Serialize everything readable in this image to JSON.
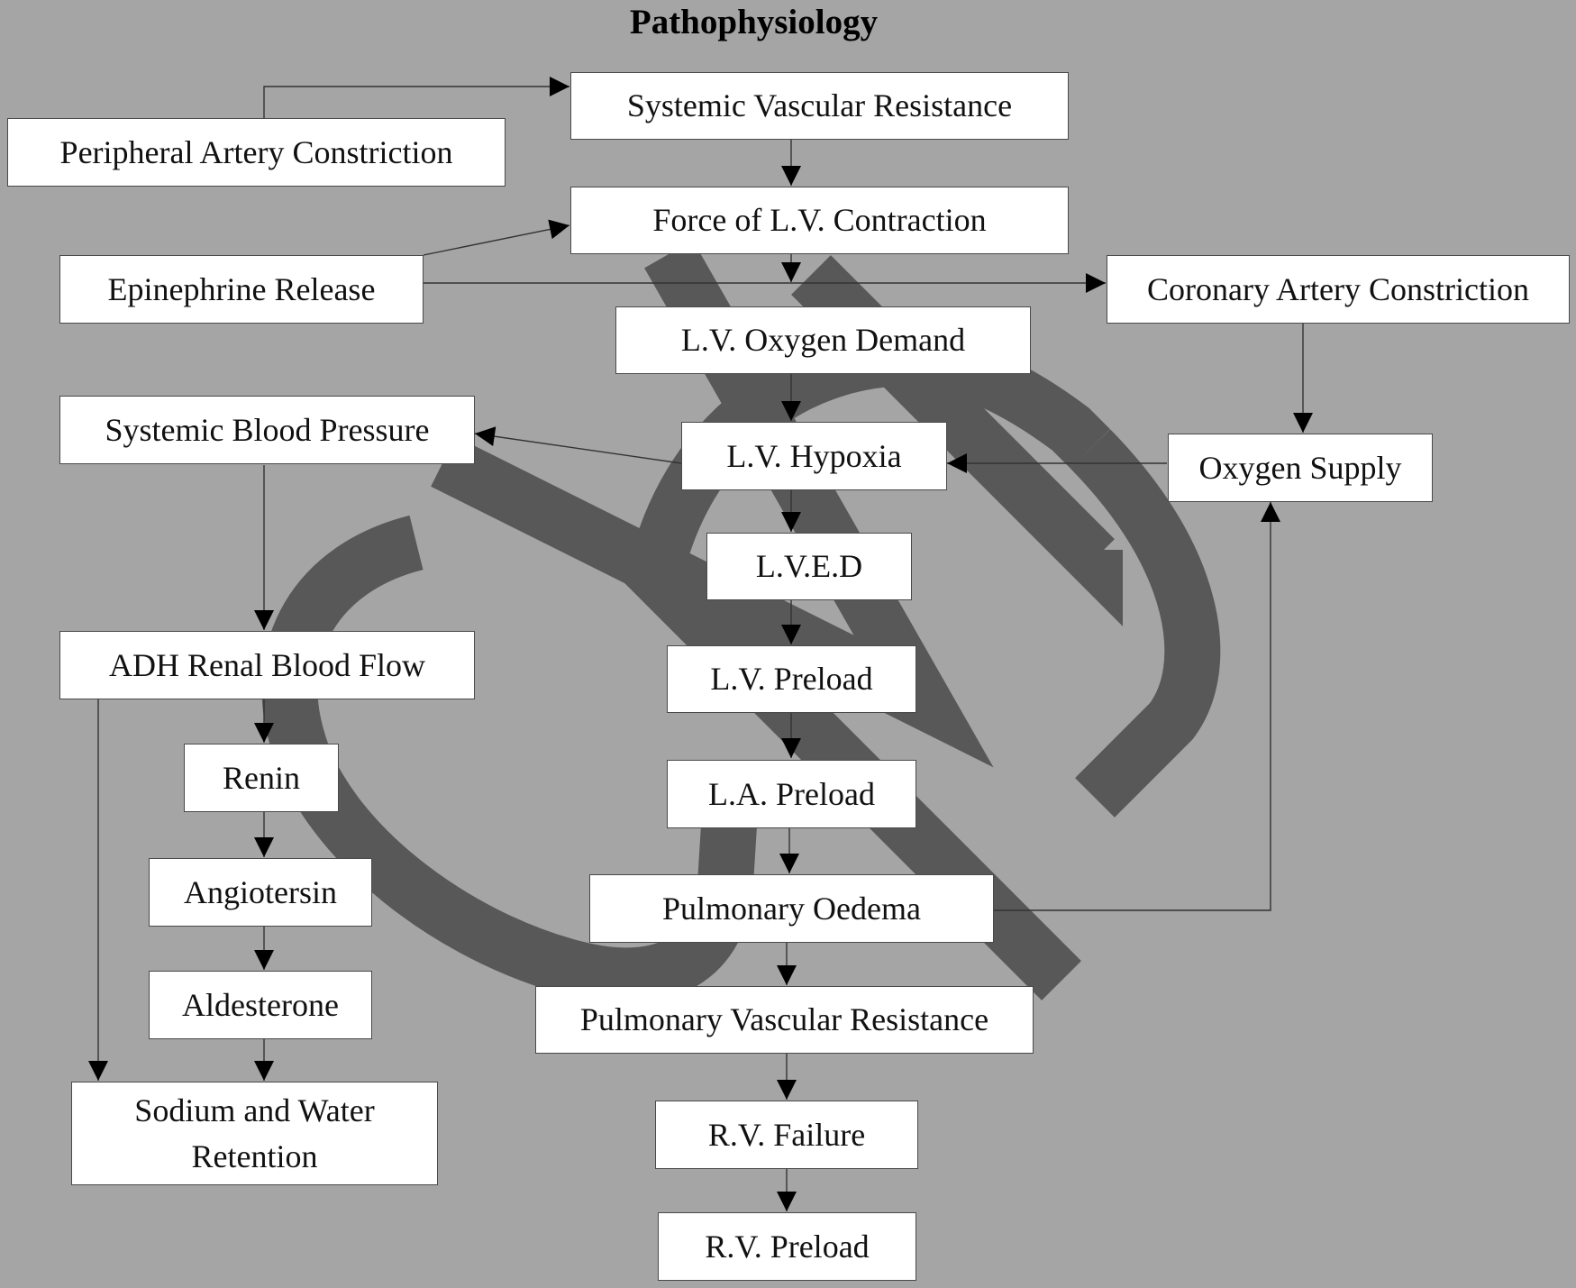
{
  "title": "Pathophysiology",
  "nodes": {
    "systemic_vascular_resistance": "Systemic Vascular Resistance",
    "peripheral_artery_constriction": "Peripheral Artery Constriction",
    "force_lv_contraction": "Force of L.V. Contraction",
    "epinephrine_release": "Epinephrine Release",
    "coronary_artery_constriction": "Coronary Artery Constriction",
    "lv_oxygen_demand": "L.V. Oxygen Demand",
    "systemic_blood_pressure": "Systemic Blood Pressure",
    "lv_hypoxia": "L.V. Hypoxia",
    "oxygen_supply": "Oxygen Supply",
    "lved": "L.V.E.D",
    "adh_renal_blood_flow": "ADH Renal Blood Flow",
    "lv_preload": "L.V. Preload",
    "renin": "Renin",
    "la_preload": "L.A. Preload",
    "angiotersin": "Angiotersin",
    "pulmonary_oedema": "Pulmonary Oedema",
    "aldesterone": "Aldesterone",
    "pulmonary_vascular_resistance": "Pulmonary Vascular Resistance",
    "sodium_water_retention_line1": "Sodium and Water",
    "sodium_water_retention_line2": "Retention",
    "rv_failure": "R.V. Failure",
    "rv_preload": "R.V. Preload"
  },
  "edges": [
    [
      "peripheral_artery_constriction",
      "systemic_vascular_resistance"
    ],
    [
      "systemic_vascular_resistance",
      "force_lv_contraction"
    ],
    [
      "epinephrine_release",
      "force_lv_contraction"
    ],
    [
      "epinephrine_release",
      "coronary_artery_constriction"
    ],
    [
      "force_lv_contraction",
      "lv_oxygen_demand"
    ],
    [
      "lv_oxygen_demand",
      "lv_hypoxia"
    ],
    [
      "coronary_artery_constriction",
      "oxygen_supply"
    ],
    [
      "oxygen_supply",
      "lv_hypoxia"
    ],
    [
      "lv_hypoxia",
      "systemic_blood_pressure"
    ],
    [
      "lv_hypoxia",
      "lved"
    ],
    [
      "lved",
      "lv_preload"
    ],
    [
      "lv_preload",
      "la_preload"
    ],
    [
      "la_preload",
      "pulmonary_oedema"
    ],
    [
      "pulmonary_oedema",
      "oxygen_supply"
    ],
    [
      "pulmonary_oedema",
      "pulmonary_vascular_resistance"
    ],
    [
      "pulmonary_vascular_resistance",
      "rv_failure"
    ],
    [
      "rv_failure",
      "rv_preload"
    ],
    [
      "systemic_blood_pressure",
      "adh_renal_blood_flow"
    ],
    [
      "adh_renal_blood_flow",
      "renin"
    ],
    [
      "adh_renal_blood_flow",
      "sodium_water_retention"
    ],
    [
      "renin",
      "angiotersin"
    ],
    [
      "angiotersin",
      "aldesterone"
    ],
    [
      "aldesterone",
      "sodium_water_retention"
    ]
  ]
}
